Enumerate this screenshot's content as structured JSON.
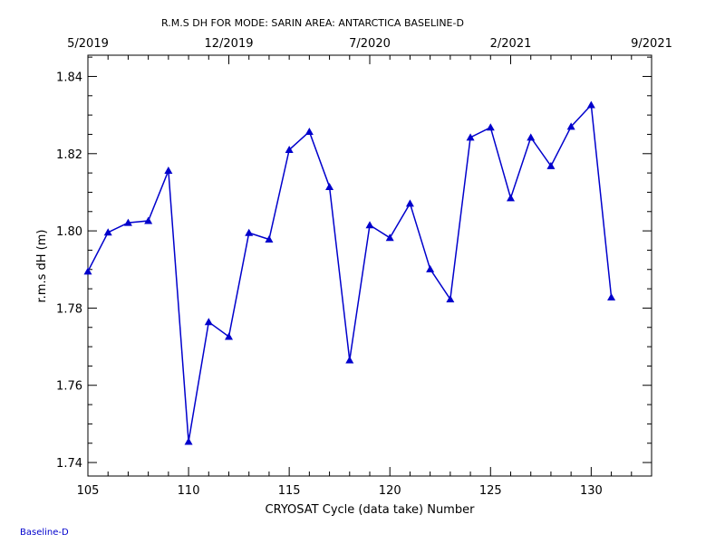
{
  "footer_label": "Baseline-D",
  "chart_data": {
    "type": "line",
    "title": "R.M.S DH FOR MODE: SARIN AREA: ANTARCTICA BASELINE-D",
    "xlabel": "CRYOSAT Cycle (data take) Number",
    "ylabel": "r.m.s dH (m)",
    "xlim": [
      105,
      133
    ],
    "ylim": [
      1.7365,
      1.8455
    ],
    "x_ticks": [
      105,
      110,
      115,
      120,
      125,
      130
    ],
    "y_ticks": [
      1.74,
      1.76,
      1.78,
      1.8,
      1.82,
      1.84
    ],
    "y_tick_labels": [
      "1.74",
      "1.76",
      "1.78",
      "1.80",
      "1.82",
      "1.84"
    ],
    "top_axis": {
      "ticks": [
        105,
        112,
        119,
        126,
        133
      ],
      "labels": [
        "5/2019",
        "12/2019",
        "7/2020",
        "2/2021",
        "9/2021"
      ]
    },
    "grid": false,
    "colors": {
      "series": "#0000cc",
      "axes": "#000000"
    },
    "series": [
      {
        "marker": "triangle",
        "x": [
          105,
          106,
          107,
          108,
          109,
          110,
          111,
          112,
          113,
          114,
          115,
          116,
          117,
          118,
          119,
          120,
          121,
          122,
          123,
          124,
          125,
          126,
          127,
          128,
          129,
          130,
          131
        ],
        "y": [
          1.7895,
          1.7996,
          1.8021,
          1.8026,
          1.8156,
          1.7454,
          1.7764,
          1.7726,
          1.7995,
          1.7978,
          1.821,
          1.8257,
          1.8114,
          1.7665,
          1.8015,
          1.7982,
          1.8071,
          1.7901,
          1.7823,
          1.8242,
          1.8268,
          1.8085,
          1.8242,
          1.8168,
          1.827,
          1.8326,
          1.7828
        ]
      }
    ]
  }
}
